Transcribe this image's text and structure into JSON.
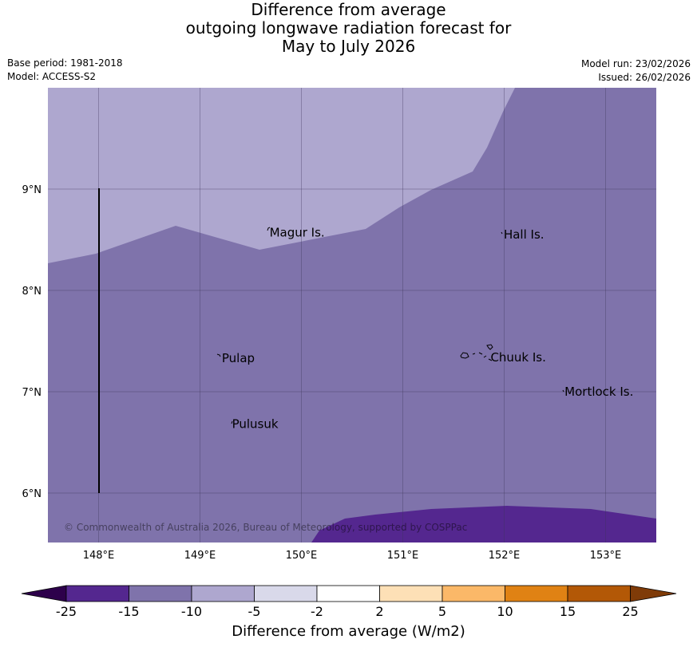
{
  "title": {
    "line1": "Difference from average",
    "line2": "outgoing longwave radiation forecast for",
    "line3": "May to July 2026"
  },
  "meta": {
    "base_period": "Base period: 1981-2018",
    "model": "Model: ACCESS-S2",
    "model_run": "Model run: 23/02/2026",
    "issued": "Issued: 26/02/2026"
  },
  "map": {
    "lon_ticks": [
      "148°E",
      "149°E",
      "150°E",
      "151°E",
      "152°E",
      "153°E"
    ],
    "lat_ticks": [
      "9°N",
      "8°N",
      "7°N",
      "6°N"
    ],
    "places": [
      {
        "name": "Magur Is.",
        "lon": 149.67,
        "lat": 8.57
      },
      {
        "name": "Hall Is.",
        "lon": 151.98,
        "lat": 8.55
      },
      {
        "name": "Pulap",
        "lon": 149.2,
        "lat": 7.33
      },
      {
        "name": "Chuuk Is.",
        "lon": 151.85,
        "lat": 7.34
      },
      {
        "name": "Mortlock Is.",
        "lon": 152.58,
        "lat": 7.0
      },
      {
        "name": "Pulusuk",
        "lon": 149.3,
        "lat": 6.68
      }
    ],
    "copyright": "© Commonwealth of Australia 2026, Bureau of Meteorology, supported by COSPPac"
  },
  "colorbar": {
    "ticks": [
      "-25",
      "-15",
      "-10",
      "-5",
      "-2",
      "2",
      "5",
      "10",
      "15",
      "25"
    ],
    "colors": [
      "#54278f",
      "#54278f",
      "#7f73ab",
      "#aea7cf",
      "#d9d9ea",
      "#ffffff",
      "#fde0b6",
      "#fbb868",
      "#e08214",
      "#b35806",
      "#7f3b08"
    ],
    "under_color": "#2d004b",
    "over_color": "#7f3b08",
    "label": "Difference from average (W/m2)"
  },
  "colors": {
    "light_purple": "#aea7cf",
    "mid_purple": "#7f73ab",
    "dark_purple": "#54278f"
  }
}
